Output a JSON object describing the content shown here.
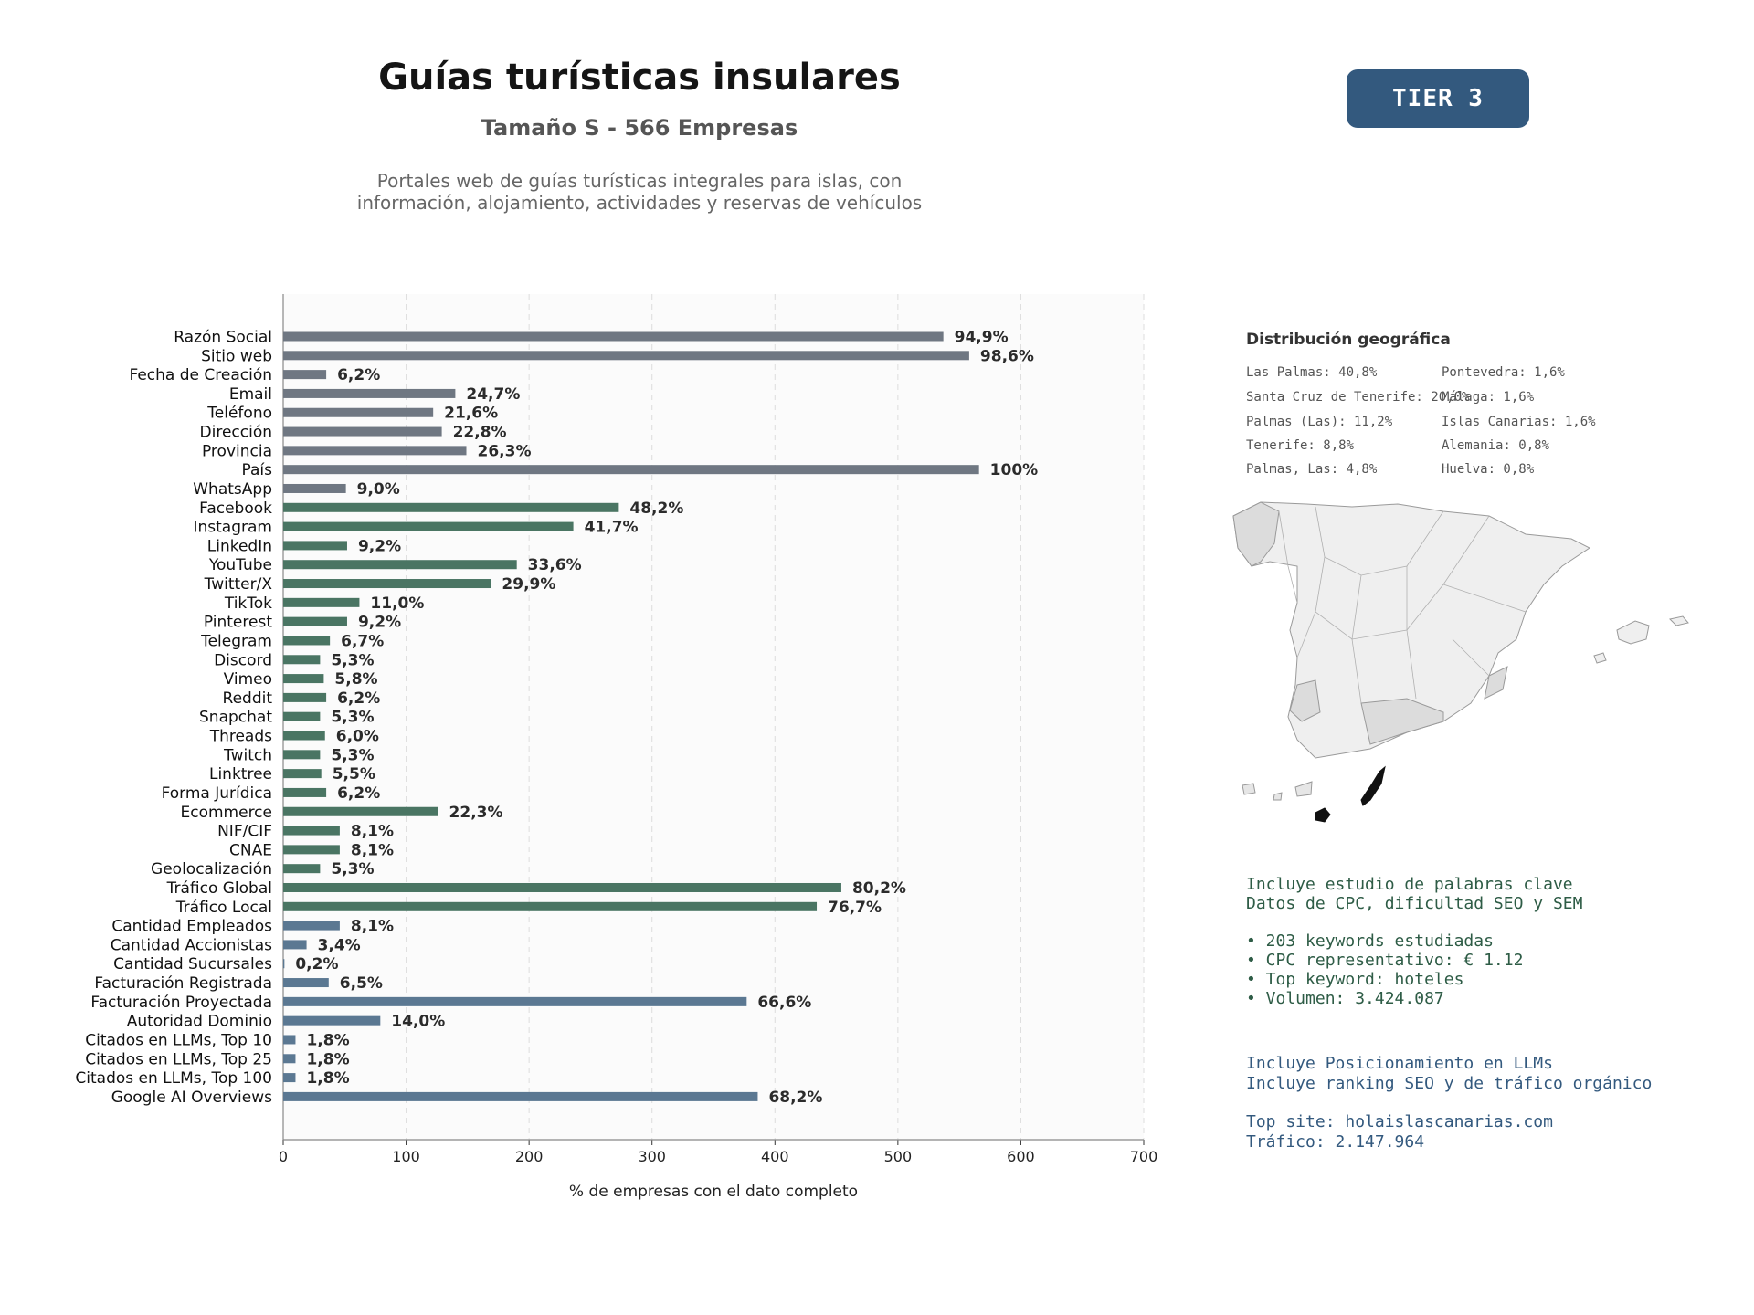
{
  "header": {
    "title": "Guías turísticas insulares",
    "subtitle": "Tamaño S - 566 Empresas",
    "desc_line1": "Portales web de guías turísticas integrales para islas, con",
    "desc_line2": "información, alojamiento, actividades y reservas de vehículos",
    "tier": "TIER 3"
  },
  "geo": {
    "title": "Distribución geográfica",
    "col1": [
      "Las Palmas: 40,8%",
      "Santa Cruz de Tenerife: 20,0%",
      "Palmas (Las): 11,2%",
      "Tenerife: 8,8%",
      "Palmas, Las: 4,8%"
    ],
    "col2": [
      "Pontevedra: 1,6%",
      "Málaga: 1,6%",
      "Islas Canarias: 1,6%",
      "Alemania: 0,8%",
      "Huelva: 0,8%"
    ]
  },
  "keywords": {
    "lines": [
      "Incluye estudio de palabras clave",
      "Datos de CPC, dificultad SEO y SEM"
    ],
    "bullets": [
      "• 203 keywords estudiadas",
      "• CPC representativo: € 1.12",
      "• Top keyword: hoteles",
      "• Volumen: 3.424.087"
    ]
  },
  "llm": {
    "lines": [
      "Incluye Posicionamiento en LLMs",
      "Incluye ranking SEO y de tráfico orgánico"
    ],
    "top_site": "Top site: holaislascanarias.com",
    "traffic": "Tráfico: 2.147.964"
  },
  "colors": {
    "gray": "#6f7782",
    "green": "#4a7563",
    "blue": "#5b7892",
    "tier_bg": "#33597e",
    "map_highlight": "#111111"
  },
  "chart_data": {
    "type": "bar",
    "orientation": "horizontal",
    "xlabel": "% de empresas con el dato completo",
    "xlim": [
      0,
      700
    ],
    "xticks": [
      0,
      100,
      200,
      300,
      400,
      500,
      600,
      700
    ],
    "grid": "vertical dashed",
    "categories": [
      "Razón Social",
      "Sitio web",
      "Fecha de Creación",
      "Email",
      "Teléfono",
      "Dirección",
      "Provincia",
      "País",
      "WhatsApp",
      "Facebook",
      "Instagram",
      "LinkedIn",
      "YouTube",
      "Twitter/X",
      "TikTok",
      "Pinterest",
      "Telegram",
      "Discord",
      "Vimeo",
      "Reddit",
      "Snapchat",
      "Threads",
      "Twitch",
      "Linktree",
      "Forma Jurídica",
      "Ecommerce",
      "NIF/CIF",
      "CNAE",
      "Geolocalización",
      "Tráfico Global",
      "Tráfico Local",
      "Cantidad Empleados",
      "Cantidad Accionistas",
      "Cantidad Sucursales",
      "Facturación Registrada",
      "Facturación Proyectada",
      "Autoridad Dominio",
      "Citados en LLMs, Top 10",
      "Citados en LLMs, Top 25",
      "Citados en LLMs, Top 100",
      "Google AI Overviews"
    ],
    "values": [
      537,
      558,
      35,
      140,
      122,
      129,
      149,
      566,
      51,
      273,
      236,
      52,
      190,
      169,
      62,
      52,
      38,
      30,
      33,
      35,
      30,
      34,
      30,
      31,
      35,
      126,
      46,
      46,
      30,
      454,
      434,
      46,
      19,
      1,
      37,
      377,
      79,
      10,
      10,
      10,
      386
    ],
    "labels": [
      "94,9%",
      "98,6%",
      "6,2%",
      "24,7%",
      "21,6%",
      "22,8%",
      "26,3%",
      "100%",
      "9,0%",
      "48,2%",
      "41,7%",
      "9,2%",
      "33,6%",
      "29,9%",
      "11,0%",
      "9,2%",
      "6,7%",
      "5,3%",
      "5,8%",
      "6,2%",
      "5,3%",
      "6,0%",
      "5,3%",
      "5,5%",
      "6,2%",
      "22,3%",
      "8,1%",
      "8,1%",
      "5,3%",
      "80,2%",
      "76,7%",
      "8,1%",
      "3,4%",
      "0,2%",
      "6,5%",
      "66,6%",
      "14,0%",
      "1,8%",
      "1,8%",
      "1,8%",
      "68,2%"
    ],
    "groups": [
      "gray",
      "gray",
      "gray",
      "gray",
      "gray",
      "gray",
      "gray",
      "gray",
      "gray",
      "green",
      "green",
      "green",
      "green",
      "green",
      "green",
      "green",
      "green",
      "green",
      "green",
      "green",
      "green",
      "green",
      "green",
      "green",
      "green",
      "green",
      "green",
      "green",
      "green",
      "green",
      "green",
      "blue",
      "blue",
      "blue",
      "blue",
      "blue",
      "blue",
      "blue",
      "blue",
      "blue",
      "blue"
    ]
  }
}
